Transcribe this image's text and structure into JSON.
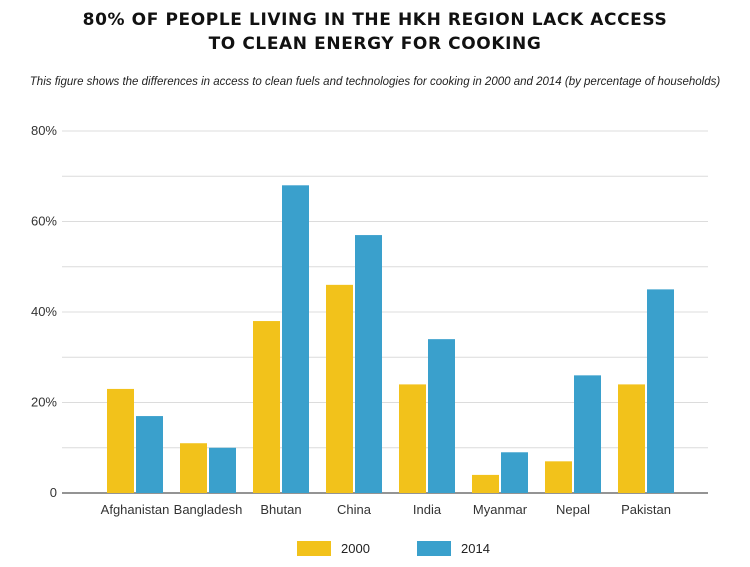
{
  "chart_data": {
    "type": "bar",
    "title_lines": [
      "80% OF PEOPLE LIVING IN THE HKH REGION LACK ACCESS",
      "TO CLEAN ENERGY FOR COOKING"
    ],
    "subtitle": "This figure shows the differences in access to clean fuels and technologies for cooking in 2000 and 2014 (by percentage of households)",
    "categories": [
      "Afghanistan",
      "Bangladesh",
      "Bhutan",
      "China",
      "India",
      "Myanmar",
      "Nepal",
      "Pakistan"
    ],
    "series": [
      {
        "name": "2000",
        "color": "#f2c21b",
        "values": [
          23,
          11,
          38,
          46,
          24,
          4,
          7,
          24
        ]
      },
      {
        "name": "2014",
        "color": "#3aa0cc",
        "values": [
          17,
          10,
          68,
          57,
          34,
          9,
          26,
          45
        ]
      }
    ],
    "ylim": [
      0,
      80
    ],
    "yticks": [
      0,
      20,
      40,
      60,
      80
    ],
    "ytick_labels": [
      "0",
      "20%",
      "40%",
      "60%",
      "80%"
    ],
    "grid": true,
    "legend_position": "bottom-center"
  }
}
